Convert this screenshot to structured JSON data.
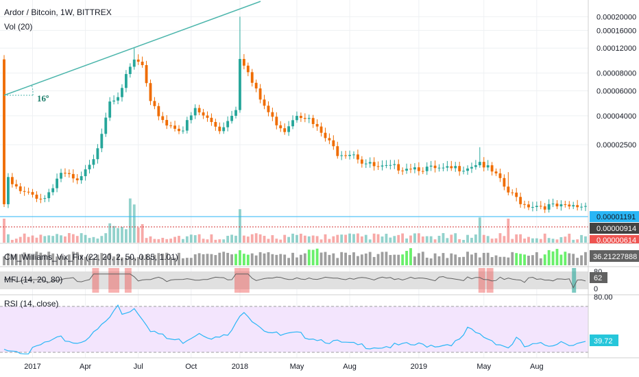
{
  "title": "Ardor / Bitcoin, 1W, BITTREX",
  "vol_label": "Vol (20)",
  "angle_label": "16º",
  "indicators": {
    "vix": {
      "label": "CM_Williams_Vix_Fix (22, 20, 2, 50, 0.85, 1.01)",
      "value": "36.21227888"
    },
    "mfi": {
      "label": "MFI (14, 20, 80)",
      "value": "62",
      "ticks": [
        "80",
        "0"
      ]
    },
    "rsi": {
      "label": "RSI (14, close)",
      "value": "39.72",
      "top_tick": "80.00"
    }
  },
  "colors": {
    "up": "#26a69a",
    "down": "#ef6c00",
    "up_vol": "#26a69a",
    "down_vol": "#ef5350",
    "trendline": "#4db6ac",
    "vix_green": "#69f06b",
    "vix_gray": "#9e9e9e",
    "mfi_red": "#ef5350",
    "mfi_green": "#26a69a",
    "rsi_fill": "#f3e5fd",
    "rsi_line": "#29b6f6"
  },
  "price_tags": {
    "blue": "0.00001191",
    "dark": "0.00000914",
    "red": "0.00000614"
  },
  "chart_data": {
    "type": "candlestick",
    "title": "Ardor / Bitcoin, 1W, BITTREX",
    "y_axis": {
      "scale": "log",
      "ticks": [
        "0.00020000",
        "0.00016000",
        "0.00012000",
        "0.00008000",
        "0.00006000",
        "0.00004000",
        "0.00002500"
      ],
      "tick_values": [
        0.0002,
        0.00016,
        0.00012,
        8e-05,
        6e-05,
        4e-05,
        2.5e-05
      ],
      "range": [
        6.5e-06,
        0.00021
      ]
    },
    "x_axis": {
      "ticks": [
        "2017",
        "Apr",
        "Jul",
        "Oct",
        "2018",
        "May",
        "Aug",
        "2019",
        "May",
        "Aug"
      ]
    },
    "anchors": [
      {
        "w": 0,
        "p": 9.5e-06
      },
      {
        "w": 1,
        "p": 1.4e-05
      },
      {
        "w": 4,
        "p": 1.15e-05
      },
      {
        "w": 10,
        "p": 1.05e-05
      },
      {
        "w": 14,
        "p": 1.6e-05
      },
      {
        "w": 18,
        "p": 1.35e-05
      },
      {
        "w": 22,
        "p": 1.9e-05
      },
      {
        "w": 26,
        "p": 5.2e-05
      },
      {
        "w": 28,
        "p": 5.7e-05
      },
      {
        "w": 31,
        "p": 8.5e-05
      },
      {
        "w": 32,
        "p": 9.8e-05
      },
      {
        "w": 34,
        "p": 9e-05
      },
      {
        "w": 36,
        "p": 4.8e-05
      },
      {
        "w": 40,
        "p": 3.5e-05
      },
      {
        "w": 44,
        "p": 3.2e-05
      },
      {
        "w": 47,
        "p": 4.4e-05
      },
      {
        "w": 50,
        "p": 3.8e-05
      },
      {
        "w": 53,
        "p": 3.2e-05
      },
      {
        "w": 55,
        "p": 3.7e-05
      },
      {
        "w": 57,
        "p": 4.6e-05
      },
      {
        "w": 58,
        "p": 0.000105
      },
      {
        "w": 59,
        "p": 9.5e-05
      },
      {
        "w": 61,
        "p": 6.8e-05
      },
      {
        "w": 63,
        "p": 5.2e-05
      },
      {
        "w": 66,
        "p": 3.8e-05
      },
      {
        "w": 69,
        "p": 3.2e-05
      },
      {
        "w": 72,
        "p": 4.2e-05
      },
      {
        "w": 74,
        "p": 4e-05
      },
      {
        "w": 78,
        "p": 3e-05
      },
      {
        "w": 82,
        "p": 2.2e-05
      },
      {
        "w": 86,
        "p": 2.2e-05
      },
      {
        "w": 88,
        "p": 1.9e-05
      },
      {
        "w": 92,
        "p": 1.7e-05
      },
      {
        "w": 100,
        "p": 1.75e-05
      },
      {
        "w": 108,
        "p": 1.65e-05
      },
      {
        "w": 112,
        "p": 1.72e-05
      },
      {
        "w": 114,
        "p": 1.75e-05
      },
      {
        "w": 117,
        "p": 1.9e-05
      },
      {
        "w": 121,
        "p": 1.5e-05
      },
      {
        "w": 124,
        "p": 1.15e-05
      },
      {
        "w": 126,
        "p": 1.05e-05
      },
      {
        "w": 128,
        "p": 9.5e-06
      },
      {
        "w": 132,
        "p": 9.3e-06
      },
      {
        "w": 138,
        "p": 9e-06
      },
      {
        "w": 143,
        "p": 9.3e-06
      }
    ],
    "rsi_anchors": [
      {
        "w": 0,
        "v": 35
      },
      {
        "w": 6,
        "v": 30
      },
      {
        "w": 10,
        "v": 40
      },
      {
        "w": 14,
        "v": 45
      },
      {
        "w": 18,
        "v": 40
      },
      {
        "w": 22,
        "v": 50
      },
      {
        "w": 26,
        "v": 68
      },
      {
        "w": 28,
        "v": 81
      },
      {
        "w": 29,
        "v": 72
      },
      {
        "w": 32,
        "v": 78
      },
      {
        "w": 34,
        "v": 68
      },
      {
        "w": 36,
        "v": 55
      },
      {
        "w": 40,
        "v": 45
      },
      {
        "w": 44,
        "v": 42
      },
      {
        "w": 48,
        "v": 52
      },
      {
        "w": 52,
        "v": 45
      },
      {
        "w": 55,
        "v": 48
      },
      {
        "w": 57,
        "v": 60
      },
      {
        "w": 59,
        "v": 76
      },
      {
        "w": 61,
        "v": 66
      },
      {
        "w": 64,
        "v": 55
      },
      {
        "w": 68,
        "v": 48
      },
      {
        "w": 72,
        "v": 50
      },
      {
        "w": 76,
        "v": 46
      },
      {
        "w": 80,
        "v": 42
      },
      {
        "w": 86,
        "v": 38
      },
      {
        "w": 92,
        "v": 36
      },
      {
        "w": 100,
        "v": 38
      },
      {
        "w": 108,
        "v": 38
      },
      {
        "w": 112,
        "v": 42
      },
      {
        "w": 114,
        "v": 55
      },
      {
        "w": 116,
        "v": 51
      },
      {
        "w": 119,
        "v": 45
      },
      {
        "w": 122,
        "v": 39
      },
      {
        "w": 124,
        "v": 35
      },
      {
        "w": 126,
        "v": 45
      },
      {
        "w": 128,
        "v": 36
      },
      {
        "w": 131,
        "v": 38
      },
      {
        "w": 134,
        "v": 38
      },
      {
        "w": 137,
        "v": 42
      },
      {
        "w": 140,
        "v": 39
      },
      {
        "w": 143,
        "v": 39.72
      }
    ],
    "spike_weeks": [
      0,
      58,
      31,
      32,
      117,
      124
    ]
  }
}
